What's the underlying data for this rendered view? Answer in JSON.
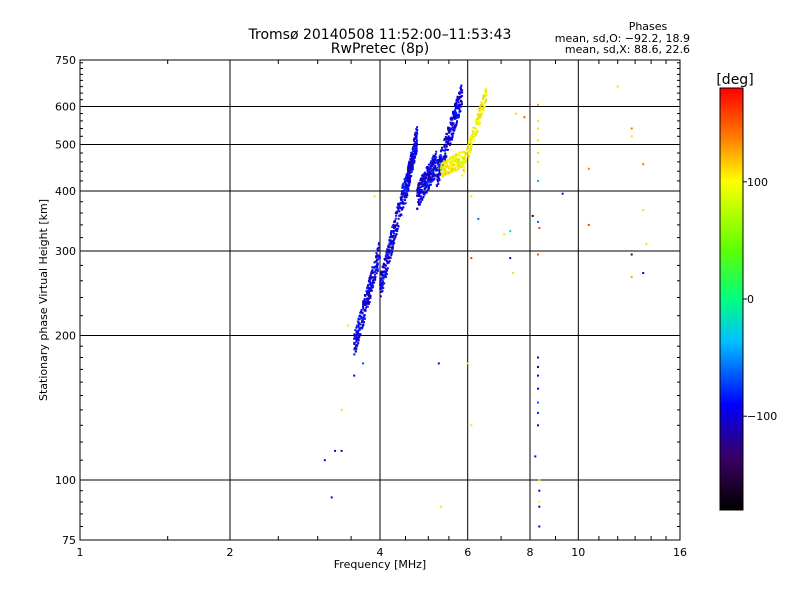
{
  "chart_data": {
    "type": "scatter",
    "title": "Tromsø 20140508 11:52:00–11:53:43",
    "subtitle": "RwPretec (8p)",
    "xlabel": "Frequency [MHz]",
    "ylabel": "Stationary phase Virtual Height [km]",
    "xscale": "log",
    "yscale": "log",
    "xlim": [
      1,
      16
    ],
    "ylim": [
      75,
      750
    ],
    "x_ticks": [
      1,
      2,
      4,
      6,
      8,
      10,
      16
    ],
    "x_tick_labels": [
      "1",
      "2",
      "4",
      "6",
      "8",
      "10",
      "16"
    ],
    "y_ticks": [
      75,
      100,
      200,
      300,
      400,
      500,
      600,
      750
    ],
    "y_tick_labels": [
      "75",
      "100",
      "200",
      "300",
      "400",
      "500",
      "600",
      "750"
    ],
    "grid": true,
    "stats": {
      "title": "Phases",
      "o_line": "mean, sd,O: −92.2, 18.9",
      "x_line": "mean, sd,X:  88.6, 22.6"
    },
    "colorbar": {
      "label": "[deg]",
      "min": -180,
      "max": 180,
      "ticks": [
        100,
        0,
        -100
      ],
      "tick_labels": [
        "100",
        "0",
        "−100"
      ]
    },
    "o_mode_phase_center": -100,
    "x_mode_phase_center": 100,
    "x_mode_traces": [
      {
        "f_start": 5.85,
        "f_end": 6.55,
        "h_start": 440,
        "h_end": 640
      },
      {
        "f_start": 5.3,
        "f_end": 5.9,
        "h_start": 440,
        "h_end": 470
      }
    ],
    "o_mode_traces": [
      {
        "f_start": 3.55,
        "f_end": 4.0,
        "h_start": 190,
        "h_end": 300
      },
      {
        "f_start": 4.0,
        "f_end": 4.5,
        "h_start": 250,
        "h_end": 410
      },
      {
        "f_start": 4.5,
        "f_end": 4.75,
        "h_start": 400,
        "h_end": 520
      },
      {
        "f_start": 4.75,
        "f_end": 5.2,
        "h_start": 390,
        "h_end": 460
      },
      {
        "f_start": 5.2,
        "f_end": 5.85,
        "h_start": 430,
        "h_end": 640
      }
    ],
    "points": [
      {
        "f": 3.1,
        "h": 110,
        "p": -110
      },
      {
        "f": 3.25,
        "h": 115,
        "p": -105
      },
      {
        "f": 3.35,
        "h": 115,
        "p": -110
      },
      {
        "f": 3.2,
        "h": 92,
        "p": -100
      },
      {
        "f": 3.35,
        "h": 140,
        "p": 110
      },
      {
        "f": 3.55,
        "h": 165,
        "p": -95
      },
      {
        "f": 3.7,
        "h": 175,
        "p": -70
      },
      {
        "f": 3.45,
        "h": 210,
        "p": 85
      },
      {
        "f": 3.9,
        "h": 390,
        "p": 110
      },
      {
        "f": 5.25,
        "h": 175,
        "p": -110
      },
      {
        "f": 6.0,
        "h": 175,
        "p": 110
      },
      {
        "f": 5.3,
        "h": 88,
        "p": 110
      },
      {
        "f": 6.1,
        "h": 130,
        "p": 110
      },
      {
        "f": 6.1,
        "h": 290,
        "p": 160
      },
      {
        "f": 6.1,
        "h": 390,
        "p": 110
      },
      {
        "f": 6.3,
        "h": 350,
        "p": -60
      },
      {
        "f": 7.1,
        "h": 325,
        "p": 110
      },
      {
        "f": 7.3,
        "h": 330,
        "p": -20
      },
      {
        "f": 7.3,
        "h": 290,
        "p": -110
      },
      {
        "f": 7.4,
        "h": 270,
        "p": 110
      },
      {
        "f": 7.5,
        "h": 580,
        "p": 110
      },
      {
        "f": 7.8,
        "h": 570,
        "p": 150
      },
      {
        "f": 8.1,
        "h": 355,
        "p": -170
      },
      {
        "f": 8.3,
        "h": 345,
        "p": -60
      },
      {
        "f": 8.35,
        "h": 335,
        "p": 160
      },
      {
        "f": 8.3,
        "h": 295,
        "p": 150
      },
      {
        "f": 8.3,
        "h": 605,
        "p": 130
      },
      {
        "f": 8.3,
        "h": 560,
        "p": 110
      },
      {
        "f": 8.3,
        "h": 540,
        "p": 110
      },
      {
        "f": 8.3,
        "h": 510,
        "p": 110
      },
      {
        "f": 8.3,
        "h": 480,
        "p": 110
      },
      {
        "f": 8.3,
        "h": 460,
        "p": 110
      },
      {
        "f": 8.3,
        "h": 420,
        "p": -40
      },
      {
        "f": 8.3,
        "h": 180,
        "p": -120
      },
      {
        "f": 8.3,
        "h": 172,
        "p": -130
      },
      {
        "f": 8.3,
        "h": 165,
        "p": -110
      },
      {
        "f": 8.3,
        "h": 155,
        "p": -90
      },
      {
        "f": 8.3,
        "h": 145,
        "p": -60
      },
      {
        "f": 8.3,
        "h": 138,
        "p": -80
      },
      {
        "f": 8.3,
        "h": 130,
        "p": -100
      },
      {
        "f": 8.2,
        "h": 112,
        "p": -100
      },
      {
        "f": 8.35,
        "h": 100,
        "p": 90
      },
      {
        "f": 8.35,
        "h": 95,
        "p": -110
      },
      {
        "f": 8.35,
        "h": 90,
        "p": 100
      },
      {
        "f": 8.35,
        "h": 88,
        "p": -110
      },
      {
        "f": 8.35,
        "h": 80,
        "p": -110
      },
      {
        "f": 9.3,
        "h": 395,
        "p": -90
      },
      {
        "f": 10.5,
        "h": 445,
        "p": 140
      },
      {
        "f": 10.5,
        "h": 340,
        "p": 160
      },
      {
        "f": 12.0,
        "h": 660,
        "p": 110
      },
      {
        "f": 12.8,
        "h": 540,
        "p": 140
      },
      {
        "f": 12.8,
        "h": 520,
        "p": 110
      },
      {
        "f": 12.8,
        "h": 295,
        "p": -150
      },
      {
        "f": 12.8,
        "h": 265,
        "p": 130
      },
      {
        "f": 13.5,
        "h": 455,
        "p": 140
      },
      {
        "f": 13.5,
        "h": 365,
        "p": 110
      },
      {
        "f": 13.5,
        "h": 270,
        "p": -90
      },
      {
        "f": 13.7,
        "h": 310,
        "p": 110
      }
    ]
  }
}
